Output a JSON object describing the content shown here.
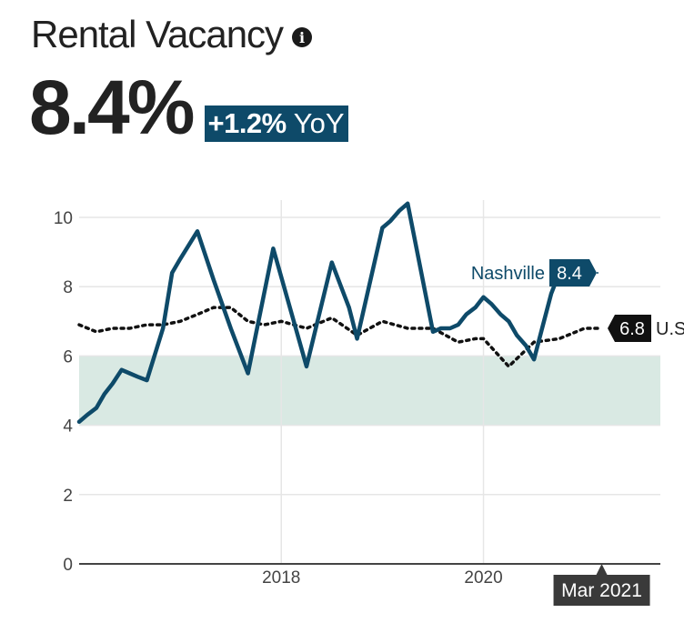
{
  "header": {
    "title": "Rental Vacancy",
    "info_icon": "info-icon",
    "value": "8.4%",
    "yoy_change": "+1.2%",
    "yoy_label": "YoY"
  },
  "colors": {
    "nashville": "#0e4a69",
    "us": "#111111",
    "band": "#d9e9e3",
    "grid": "#e6e6e6",
    "axis": "#444444",
    "tooltip": "#3a3a3a"
  },
  "chart_data": {
    "type": "line",
    "ylim": [
      0,
      10.5
    ],
    "yticks": [
      "0",
      "2",
      "4",
      "6",
      "8",
      "10"
    ],
    "ytick_values": [
      0,
      2,
      4,
      6,
      8,
      10
    ],
    "xticks": [
      "2018",
      "2020"
    ],
    "xtick_values": [
      2018,
      2020
    ],
    "xlim": [
      2016.0,
      2021.75
    ],
    "shaded_band": [
      4,
      6
    ],
    "hover_label": "Mar 2021",
    "hover_x": 2021.17,
    "series": [
      {
        "name": "Nashville",
        "end_value_label": "8.4",
        "points": [
          [
            2016.0,
            4.1
          ],
          [
            2016.08,
            4.3
          ],
          [
            2016.17,
            4.5
          ],
          [
            2016.25,
            4.9
          ],
          [
            2016.33,
            5.2
          ],
          [
            2016.42,
            5.6
          ],
          [
            2016.5,
            5.5
          ],
          [
            2016.58,
            5.4
          ],
          [
            2016.67,
            5.3
          ],
          [
            2016.83,
            6.8
          ],
          [
            2016.92,
            8.4
          ],
          [
            2017.0,
            8.8
          ],
          [
            2017.17,
            9.6
          ],
          [
            2017.33,
            8.2
          ],
          [
            2017.5,
            6.8
          ],
          [
            2017.67,
            5.5
          ],
          [
            2017.92,
            9.1
          ],
          [
            2018.25,
            5.7
          ],
          [
            2018.5,
            8.7
          ],
          [
            2018.67,
            7.4
          ],
          [
            2018.75,
            6.5
          ],
          [
            2019.0,
            9.7
          ],
          [
            2019.08,
            9.9
          ],
          [
            2019.17,
            10.2
          ],
          [
            2019.25,
            10.4
          ],
          [
            2019.5,
            6.7
          ],
          [
            2019.58,
            6.8
          ],
          [
            2019.67,
            6.8
          ],
          [
            2019.75,
            6.9
          ],
          [
            2019.83,
            7.2
          ],
          [
            2019.92,
            7.4
          ],
          [
            2020.0,
            7.7
          ],
          [
            2020.08,
            7.5
          ],
          [
            2020.17,
            7.2
          ],
          [
            2020.25,
            7.0
          ],
          [
            2020.33,
            6.6
          ],
          [
            2020.42,
            6.3
          ],
          [
            2020.5,
            5.9
          ],
          [
            2020.58,
            6.8
          ],
          [
            2020.67,
            7.8
          ],
          [
            2020.75,
            8.4
          ]
        ]
      },
      {
        "name": "U.S.",
        "end_value_label": "6.8",
        "points": [
          [
            2016.0,
            6.9
          ],
          [
            2016.17,
            6.7
          ],
          [
            2016.33,
            6.8
          ],
          [
            2016.5,
            6.8
          ],
          [
            2016.67,
            6.9
          ],
          [
            2016.83,
            6.9
          ],
          [
            2017.0,
            7.0
          ],
          [
            2017.17,
            7.2
          ],
          [
            2017.33,
            7.4
          ],
          [
            2017.5,
            7.4
          ],
          [
            2017.67,
            7.0
          ],
          [
            2017.83,
            6.9
          ],
          [
            2018.0,
            7.0
          ],
          [
            2018.25,
            6.8
          ],
          [
            2018.5,
            7.1
          ],
          [
            2018.75,
            6.6
          ],
          [
            2019.0,
            7.0
          ],
          [
            2019.25,
            6.8
          ],
          [
            2019.5,
            6.8
          ],
          [
            2019.75,
            6.4
          ],
          [
            2019.92,
            6.5
          ],
          [
            2020.0,
            6.5
          ],
          [
            2020.25,
            5.7
          ],
          [
            2020.5,
            6.4
          ],
          [
            2020.75,
            6.5
          ],
          [
            2021.0,
            6.8
          ],
          [
            2021.17,
            6.8
          ]
        ]
      }
    ]
  }
}
